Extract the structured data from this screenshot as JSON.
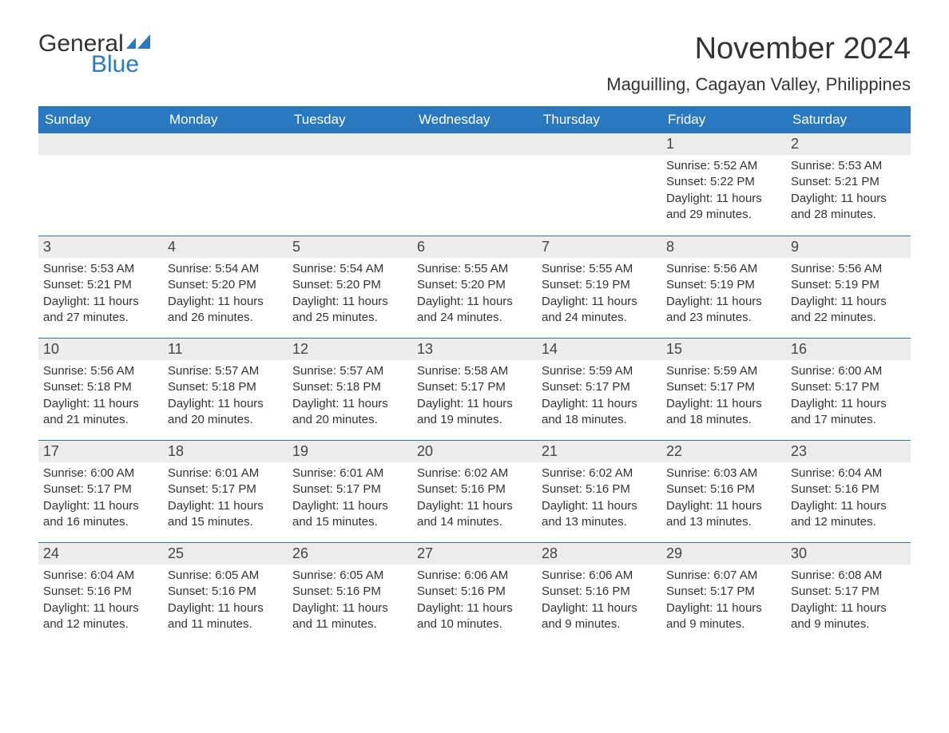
{
  "logo": {
    "word1": "General",
    "word2": "Blue",
    "flag_color": "#2a79c0"
  },
  "title": "November 2024",
  "location": "Maguilling, Cagayan Valley, Philippines",
  "colors": {
    "header_bg": "#2a79c0",
    "daynum_bg": "#ececec",
    "text": "#333333",
    "week_border": "#2a79c0"
  },
  "weekdays": [
    "Sunday",
    "Monday",
    "Tuesday",
    "Wednesday",
    "Thursday",
    "Friday",
    "Saturday"
  ],
  "weeks": [
    [
      {
        "empty": true
      },
      {
        "empty": true
      },
      {
        "empty": true
      },
      {
        "empty": true
      },
      {
        "empty": true
      },
      {
        "day": "1",
        "sunrise": "Sunrise: 5:52 AM",
        "sunset": "Sunset: 5:22 PM",
        "daylight": "Daylight: 11 hours and 29 minutes."
      },
      {
        "day": "2",
        "sunrise": "Sunrise: 5:53 AM",
        "sunset": "Sunset: 5:21 PM",
        "daylight": "Daylight: 11 hours and 28 minutes."
      }
    ],
    [
      {
        "day": "3",
        "sunrise": "Sunrise: 5:53 AM",
        "sunset": "Sunset: 5:21 PM",
        "daylight": "Daylight: 11 hours and 27 minutes."
      },
      {
        "day": "4",
        "sunrise": "Sunrise: 5:54 AM",
        "sunset": "Sunset: 5:20 PM",
        "daylight": "Daylight: 11 hours and 26 minutes."
      },
      {
        "day": "5",
        "sunrise": "Sunrise: 5:54 AM",
        "sunset": "Sunset: 5:20 PM",
        "daylight": "Daylight: 11 hours and 25 minutes."
      },
      {
        "day": "6",
        "sunrise": "Sunrise: 5:55 AM",
        "sunset": "Sunset: 5:20 PM",
        "daylight": "Daylight: 11 hours and 24 minutes."
      },
      {
        "day": "7",
        "sunrise": "Sunrise: 5:55 AM",
        "sunset": "Sunset: 5:19 PM",
        "daylight": "Daylight: 11 hours and 24 minutes."
      },
      {
        "day": "8",
        "sunrise": "Sunrise: 5:56 AM",
        "sunset": "Sunset: 5:19 PM",
        "daylight": "Daylight: 11 hours and 23 minutes."
      },
      {
        "day": "9",
        "sunrise": "Sunrise: 5:56 AM",
        "sunset": "Sunset: 5:19 PM",
        "daylight": "Daylight: 11 hours and 22 minutes."
      }
    ],
    [
      {
        "day": "10",
        "sunrise": "Sunrise: 5:56 AM",
        "sunset": "Sunset: 5:18 PM",
        "daylight": "Daylight: 11 hours and 21 minutes."
      },
      {
        "day": "11",
        "sunrise": "Sunrise: 5:57 AM",
        "sunset": "Sunset: 5:18 PM",
        "daylight": "Daylight: 11 hours and 20 minutes."
      },
      {
        "day": "12",
        "sunrise": "Sunrise: 5:57 AM",
        "sunset": "Sunset: 5:18 PM",
        "daylight": "Daylight: 11 hours and 20 minutes."
      },
      {
        "day": "13",
        "sunrise": "Sunrise: 5:58 AM",
        "sunset": "Sunset: 5:17 PM",
        "daylight": "Daylight: 11 hours and 19 minutes."
      },
      {
        "day": "14",
        "sunrise": "Sunrise: 5:59 AM",
        "sunset": "Sunset: 5:17 PM",
        "daylight": "Daylight: 11 hours and 18 minutes."
      },
      {
        "day": "15",
        "sunrise": "Sunrise: 5:59 AM",
        "sunset": "Sunset: 5:17 PM",
        "daylight": "Daylight: 11 hours and 18 minutes."
      },
      {
        "day": "16",
        "sunrise": "Sunrise: 6:00 AM",
        "sunset": "Sunset: 5:17 PM",
        "daylight": "Daylight: 11 hours and 17 minutes."
      }
    ],
    [
      {
        "day": "17",
        "sunrise": "Sunrise: 6:00 AM",
        "sunset": "Sunset: 5:17 PM",
        "daylight": "Daylight: 11 hours and 16 minutes."
      },
      {
        "day": "18",
        "sunrise": "Sunrise: 6:01 AM",
        "sunset": "Sunset: 5:17 PM",
        "daylight": "Daylight: 11 hours and 15 minutes."
      },
      {
        "day": "19",
        "sunrise": "Sunrise: 6:01 AM",
        "sunset": "Sunset: 5:17 PM",
        "daylight": "Daylight: 11 hours and 15 minutes."
      },
      {
        "day": "20",
        "sunrise": "Sunrise: 6:02 AM",
        "sunset": "Sunset: 5:16 PM",
        "daylight": "Daylight: 11 hours and 14 minutes."
      },
      {
        "day": "21",
        "sunrise": "Sunrise: 6:02 AM",
        "sunset": "Sunset: 5:16 PM",
        "daylight": "Daylight: 11 hours and 13 minutes."
      },
      {
        "day": "22",
        "sunrise": "Sunrise: 6:03 AM",
        "sunset": "Sunset: 5:16 PM",
        "daylight": "Daylight: 11 hours and 13 minutes."
      },
      {
        "day": "23",
        "sunrise": "Sunrise: 6:04 AM",
        "sunset": "Sunset: 5:16 PM",
        "daylight": "Daylight: 11 hours and 12 minutes."
      }
    ],
    [
      {
        "day": "24",
        "sunrise": "Sunrise: 6:04 AM",
        "sunset": "Sunset: 5:16 PM",
        "daylight": "Daylight: 11 hours and 12 minutes."
      },
      {
        "day": "25",
        "sunrise": "Sunrise: 6:05 AM",
        "sunset": "Sunset: 5:16 PM",
        "daylight": "Daylight: 11 hours and 11 minutes."
      },
      {
        "day": "26",
        "sunrise": "Sunrise: 6:05 AM",
        "sunset": "Sunset: 5:16 PM",
        "daylight": "Daylight: 11 hours and 11 minutes."
      },
      {
        "day": "27",
        "sunrise": "Sunrise: 6:06 AM",
        "sunset": "Sunset: 5:16 PM",
        "daylight": "Daylight: 11 hours and 10 minutes."
      },
      {
        "day": "28",
        "sunrise": "Sunrise: 6:06 AM",
        "sunset": "Sunset: 5:16 PM",
        "daylight": "Daylight: 11 hours and 9 minutes."
      },
      {
        "day": "29",
        "sunrise": "Sunrise: 6:07 AM",
        "sunset": "Sunset: 5:17 PM",
        "daylight": "Daylight: 11 hours and 9 minutes."
      },
      {
        "day": "30",
        "sunrise": "Sunrise: 6:08 AM",
        "sunset": "Sunset: 5:17 PM",
        "daylight": "Daylight: 11 hours and 9 minutes."
      }
    ]
  ]
}
